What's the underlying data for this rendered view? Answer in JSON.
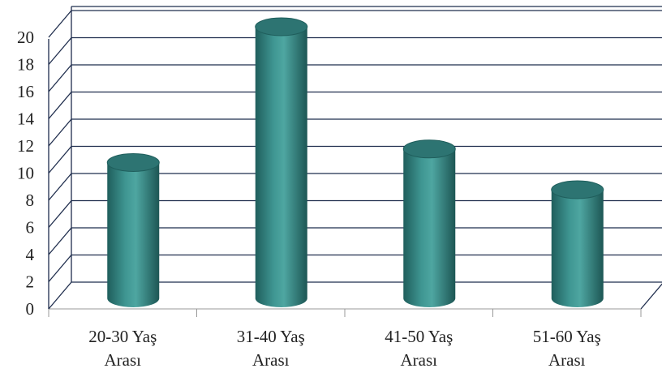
{
  "chart_data": {
    "type": "bar",
    "style": "3d-cylinder",
    "categories": [
      "20-30 Yaş Arası",
      "31-40 Yaş Arası",
      "41-50 Yaş Arası",
      "51-60 Yaş Arası"
    ],
    "category_lines": [
      [
        "20-30 Yaş",
        "Arası"
      ],
      [
        "31-40 Yaş",
        "Arası"
      ],
      [
        "41-50 Yaş",
        "Arası"
      ],
      [
        "51-60 Yaş",
        "Arası"
      ]
    ],
    "values": [
      10,
      20,
      11,
      8
    ],
    "yticks": [
      "0",
      "2",
      "4",
      "6",
      "8",
      "10",
      "12",
      "14",
      "16",
      "18",
      "20"
    ],
    "ylim": [
      0,
      20
    ],
    "title": "",
    "xlabel": "",
    "ylabel": "",
    "grid": true,
    "legend": "none",
    "colors": {
      "bar_body": "#3a8f8b",
      "bar_dark": "#1f5e5c",
      "bar_top": "#2d7472",
      "grid": "#1f2d4d"
    }
  }
}
